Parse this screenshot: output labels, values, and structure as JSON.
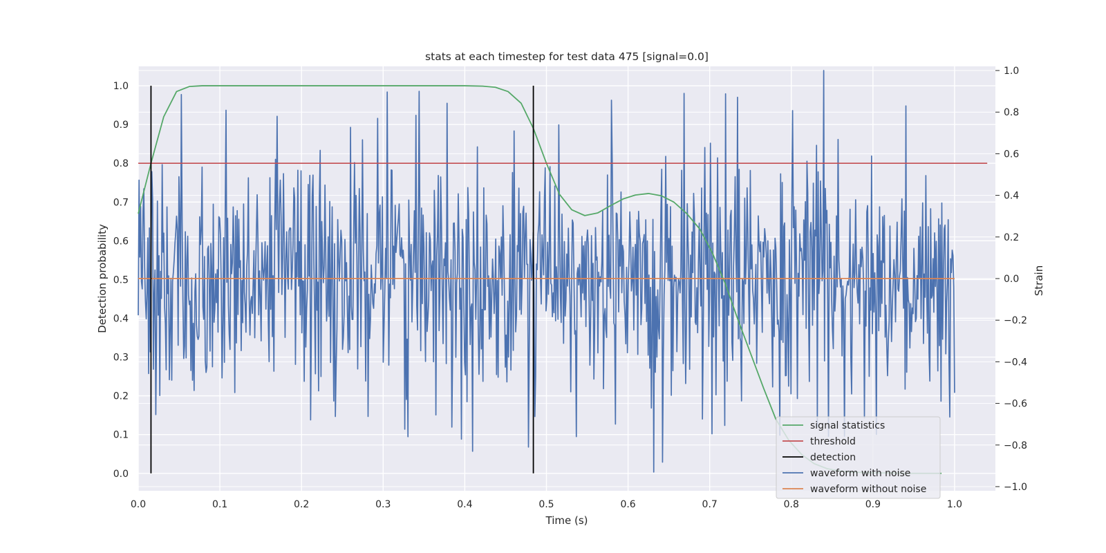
{
  "chart_data": {
    "type": "line",
    "title": "stats at each timestep for test data 475 [signal=0.0]",
    "xlabel": "Time (s)",
    "ylabel": "Detection probability",
    "y2label": "Strain",
    "xlim": [
      0.0,
      1.05
    ],
    "ylim": [
      -0.045,
      1.05
    ],
    "y2lim": [
      -1.02,
      1.02
    ],
    "grid": true,
    "legend_position": "lower-right",
    "x_ticks": [
      "0.0",
      "0.1",
      "0.2",
      "0.3",
      "0.4",
      "0.5",
      "0.6",
      "0.7",
      "0.8",
      "0.9",
      "1.0"
    ],
    "y_ticks": [
      "0.0",
      "0.1",
      "0.2",
      "0.3",
      "0.4",
      "0.5",
      "0.6",
      "0.7",
      "0.8",
      "0.9",
      "1.0"
    ],
    "y2_ticks": [
      "−1.0",
      "−0.8",
      "−0.6",
      "−0.4",
      "−0.2",
      "0.0",
      "0.2",
      "0.4",
      "0.6",
      "0.8",
      "1.0"
    ],
    "series": [
      {
        "name": "signal statistics",
        "axis": "left",
        "color": "#55a868",
        "x": [
          0.0,
          0.0156,
          0.0312,
          0.0469,
          0.0625,
          0.0781,
          0.1,
          0.2,
          0.3,
          0.4,
          0.422,
          0.4375,
          0.453,
          0.469,
          0.484,
          0.5,
          0.516,
          0.531,
          0.547,
          0.563,
          0.578,
          0.594,
          0.609,
          0.625,
          0.641,
          0.656,
          0.672,
          0.688,
          0.703,
          0.719,
          0.734,
          0.75,
          0.766,
          0.781,
          0.797,
          0.813,
          0.828,
          0.844,
          0.859,
          0.875,
          0.891,
          0.906,
          0.922,
          0.938,
          0.953,
          0.969,
          0.984
        ],
        "values": [
          0.67,
          0.8,
          0.92,
          0.985,
          0.998,
          1.0,
          1.0,
          1.0,
          1.0,
          1.0,
          0.999,
          0.996,
          0.985,
          0.955,
          0.89,
          0.8,
          0.72,
          0.68,
          0.665,
          0.672,
          0.69,
          0.708,
          0.718,
          0.722,
          0.716,
          0.7,
          0.67,
          0.63,
          0.57,
          0.49,
          0.4,
          0.31,
          0.22,
          0.14,
          0.085,
          0.048,
          0.025,
          0.012,
          0.006,
          0.003,
          0.002,
          0.001,
          0.001,
          0.0,
          0.0,
          0.0,
          0.0
        ]
      },
      {
        "name": "threshold",
        "axis": "left",
        "color": "#c44e52",
        "x": [
          0.0,
          1.04
        ],
        "values": [
          0.8,
          0.8
        ]
      },
      {
        "name": "detection",
        "axis": "left",
        "color": "#000000",
        "segments": [
          {
            "x": 0.0156,
            "y0": 0.0,
            "y1": 1.0
          },
          {
            "x": 0.484,
            "y0": 0.0,
            "y1": 1.0
          }
        ]
      },
      {
        "name": "waveform with noise",
        "axis": "right",
        "color": "#4c72b0",
        "x_range": [
          0.0,
          1.0
        ],
        "n_samples": 1024,
        "amplitude_std": 0.3,
        "highlights": [
          {
            "x": 0.17,
            "value": 0.78
          },
          {
            "x": 0.293,
            "value": 0.77
          },
          {
            "x": 0.33,
            "value": -0.76
          },
          {
            "x": 0.41,
            "value": -0.83
          },
          {
            "x": 0.478,
            "value": -0.81
          },
          {
            "x": 0.631,
            "value": -0.93
          },
          {
            "x": 0.669,
            "value": 0.89
          },
          {
            "x": 0.84,
            "value": 1.0
          },
          {
            "x": 0.94,
            "value": 0.83
          }
        ]
      },
      {
        "name": "waveform without noise",
        "axis": "right",
        "color": "#dd8452",
        "x": [
          0.0,
          1.0
        ],
        "values": [
          0.0,
          0.0
        ]
      }
    ]
  }
}
